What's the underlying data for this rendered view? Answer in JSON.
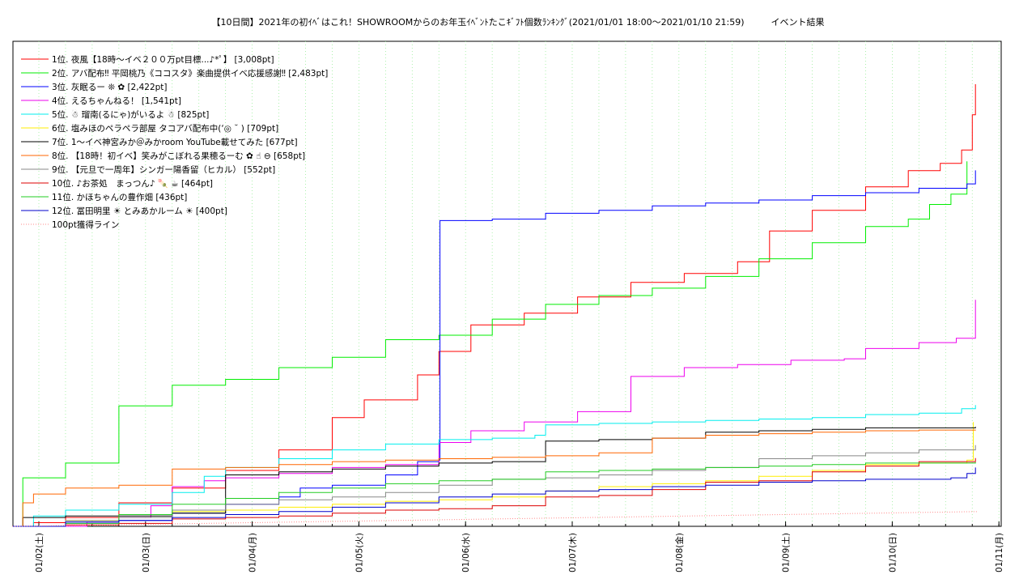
{
  "chart_data": {
    "type": "line",
    "title": "【10日間】2021年の初ｲﾍﾞはこれ！SHOWROOMからのお年玉ｲﾍﾞﾝﾄたこｷﾞﾌﾄ個数ﾗﾝｷﾝｸﾞ(2021/01/01 18:00〜2021/01/10 21:59)　　　イベント結果",
    "xlabel": "",
    "ylabel": "",
    "x_range": [
      "2021/01/01 18:00",
      "2021/01/11 00:00"
    ],
    "ylim": [
      0,
      3300
    ],
    "grid": true,
    "legend_position": "top-left",
    "x_ticks": [
      "01/02(土)",
      "01/03(日)",
      "01/04(月)",
      "01/05(火)",
      "01/06(水)",
      "01/07(木)",
      "01/08(金)",
      "01/09(土)",
      "01/10(日)",
      "01/11(月)"
    ],
    "series": [
      {
        "name": "1位. 夜風【18時〜イベ２００万pt目標...♪*ﾟ】 [3,008pt]",
        "color": "#ff0000",
        "points": [
          [
            0,
            0
          ],
          [
            0.2,
            25
          ],
          [
            0.5,
            60
          ],
          [
            1.0,
            160
          ],
          [
            1.5,
            260
          ],
          [
            2.0,
            380
          ],
          [
            2.5,
            520
          ],
          [
            3.0,
            740
          ],
          [
            3.3,
            860
          ],
          [
            3.8,
            1030
          ],
          [
            4.0,
            1190
          ],
          [
            4.3,
            1370
          ],
          [
            4.8,
            1450
          ],
          [
            5.3,
            1560
          ],
          [
            5.8,
            1660
          ],
          [
            6.3,
            1720
          ],
          [
            6.8,
            1800
          ],
          [
            7.1,
            2010
          ],
          [
            7.5,
            2150
          ],
          [
            8.0,
            2310
          ],
          [
            8.4,
            2420
          ],
          [
            8.7,
            2470
          ],
          [
            8.9,
            2560
          ],
          [
            9.0,
            2800
          ],
          [
            9.03,
            3008
          ]
        ]
      },
      {
        "name": "2位. アバ配布‼ 平岡桃乃《ココスタ》楽曲提供イベ応援感謝‼ [2,483pt]",
        "color": "#00ee00",
        "points": [
          [
            0,
            0
          ],
          [
            0.1,
            330
          ],
          [
            0.5,
            430
          ],
          [
            1.0,
            820
          ],
          [
            1.5,
            960
          ],
          [
            2.0,
            1000
          ],
          [
            2.5,
            1080
          ],
          [
            3.0,
            1150
          ],
          [
            3.5,
            1270
          ],
          [
            4.0,
            1300
          ],
          [
            4.5,
            1410
          ],
          [
            5.0,
            1510
          ],
          [
            5.5,
            1570
          ],
          [
            6.0,
            1620
          ],
          [
            6.5,
            1700
          ],
          [
            7.0,
            1820
          ],
          [
            7.5,
            1930
          ],
          [
            8.0,
            2040
          ],
          [
            8.4,
            2090
          ],
          [
            8.6,
            2190
          ],
          [
            8.8,
            2260
          ],
          [
            8.95,
            2483
          ]
        ]
      },
      {
        "name": "3位. 灰眠るー ❊ ✿ [2,422pt]",
        "color": "#0000ff",
        "points": [
          [
            0,
            0
          ],
          [
            0.5,
            20
          ],
          [
            1.0,
            40
          ],
          [
            1.5,
            90
          ],
          [
            2.0,
            150
          ],
          [
            2.5,
            200
          ],
          [
            2.7,
            260
          ],
          [
            3.0,
            280
          ],
          [
            3.5,
            350
          ],
          [
            3.8,
            440
          ],
          [
            4.0,
            450
          ],
          [
            4.01,
            2080
          ],
          [
            4.5,
            2090
          ],
          [
            5.0,
            2130
          ],
          [
            5.5,
            2150
          ],
          [
            6.0,
            2180
          ],
          [
            6.5,
            2200
          ],
          [
            7.0,
            2220
          ],
          [
            7.5,
            2250
          ],
          [
            8.0,
            2270
          ],
          [
            8.5,
            2300
          ],
          [
            8.95,
            2330
          ],
          [
            9.03,
            2422
          ]
        ]
      },
      {
        "name": "4位. えるちゃんねる！ [1,541pt]",
        "color": "#ee00ee",
        "points": [
          [
            0,
            0
          ],
          [
            0.5,
            0
          ],
          [
            0.7,
            30
          ],
          [
            1.0,
            60
          ],
          [
            1.3,
            140
          ],
          [
            1.5,
            270
          ],
          [
            1.8,
            310
          ],
          [
            2.0,
            330
          ],
          [
            2.5,
            360
          ],
          [
            3.0,
            400
          ],
          [
            3.5,
            420
          ],
          [
            4.0,
            570
          ],
          [
            4.3,
            650
          ],
          [
            4.8,
            710
          ],
          [
            5.3,
            780
          ],
          [
            5.8,
            1020
          ],
          [
            6.3,
            1080
          ],
          [
            6.8,
            1100
          ],
          [
            7.3,
            1130
          ],
          [
            7.8,
            1140
          ],
          [
            8.0,
            1210
          ],
          [
            8.5,
            1250
          ],
          [
            8.85,
            1280
          ],
          [
            9.03,
            1541
          ]
        ]
      },
      {
        "name": "5位. ☃ 瑠南(るにゃ)がいるよ ☃ [825pt]",
        "color": "#00eeee",
        "points": [
          [
            0,
            0
          ],
          [
            0.2,
            70
          ],
          [
            0.5,
            110
          ],
          [
            1.0,
            150
          ],
          [
            1.5,
            230
          ],
          [
            1.8,
            340
          ],
          [
            2.0,
            400
          ],
          [
            2.5,
            460
          ],
          [
            3.0,
            520
          ],
          [
            3.5,
            560
          ],
          [
            4.0,
            590
          ],
          [
            4.5,
            600
          ],
          [
            4.9,
            620
          ],
          [
            5.0,
            690
          ],
          [
            5.5,
            700
          ],
          [
            6.0,
            710
          ],
          [
            6.5,
            720
          ],
          [
            7.0,
            730
          ],
          [
            7.5,
            740
          ],
          [
            8.0,
            760
          ],
          [
            8.5,
            770
          ],
          [
            8.9,
            800
          ],
          [
            9.03,
            825
          ]
        ]
      },
      {
        "name": "6位. 塩みほのペラペラ部屋 タコアバ配布中(‘◎ ˘ ) [709pt]",
        "color": "#ffee00",
        "points": [
          [
            0,
            0
          ],
          [
            0.5,
            40
          ],
          [
            1.0,
            80
          ],
          [
            1.5,
            100
          ],
          [
            2.0,
            110
          ],
          [
            2.5,
            130
          ],
          [
            3.0,
            150
          ],
          [
            3.5,
            170
          ],
          [
            4.0,
            180
          ],
          [
            4.5,
            200
          ],
          [
            5.0,
            240
          ],
          [
            5.5,
            270
          ],
          [
            6.0,
            290
          ],
          [
            6.5,
            310
          ],
          [
            7.0,
            340
          ],
          [
            7.5,
            380
          ],
          [
            8.0,
            420
          ],
          [
            8.5,
            430
          ],
          [
            8.95,
            450
          ],
          [
            9.01,
            709
          ]
        ]
      },
      {
        "name": "7位. 1〜イベ神宮みか＠みかroom YouTube載せてみた [677pt]",
        "color": "#000000",
        "points": [
          [
            0,
            0
          ],
          [
            0.1,
            60
          ],
          [
            0.5,
            70
          ],
          [
            1.0,
            70
          ],
          [
            1.5,
            90
          ],
          [
            2.0,
            350
          ],
          [
            2.5,
            370
          ],
          [
            3.0,
            390
          ],
          [
            3.5,
            410
          ],
          [
            4.0,
            430
          ],
          [
            4.5,
            440
          ],
          [
            5.0,
            580
          ],
          [
            5.5,
            590
          ],
          [
            6.0,
            600
          ],
          [
            6.5,
            640
          ],
          [
            7.0,
            650
          ],
          [
            7.5,
            660
          ],
          [
            8.0,
            670
          ],
          [
            8.5,
            670
          ],
          [
            9.03,
            677
          ]
        ]
      },
      {
        "name": "8位. 【18時！初イベ】笑みがこぼれる果穂るーむ ✿ ☝ ⊖ [658pt]",
        "color": "#ff6600",
        "points": [
          [
            0,
            0
          ],
          [
            0.1,
            160
          ],
          [
            0.2,
            220
          ],
          [
            0.5,
            260
          ],
          [
            1.0,
            280
          ],
          [
            1.5,
            390
          ],
          [
            2.0,
            400
          ],
          [
            2.5,
            420
          ],
          [
            3.0,
            440
          ],
          [
            3.5,
            450
          ],
          [
            4.0,
            460
          ],
          [
            4.5,
            470
          ],
          [
            5.0,
            480
          ],
          [
            5.5,
            500
          ],
          [
            6.0,
            600
          ],
          [
            6.5,
            620
          ],
          [
            7.0,
            630
          ],
          [
            7.5,
            640
          ],
          [
            8.0,
            650
          ],
          [
            8.5,
            655
          ],
          [
            9.03,
            658
          ]
        ]
      },
      {
        "name": "9位. 【元旦で一周年】シンガー陽香留（ヒカル） [552pt]",
        "color": "#888888",
        "points": [
          [
            0,
            0
          ],
          [
            0.5,
            40
          ],
          [
            1.0,
            60
          ],
          [
            1.5,
            110
          ],
          [
            2.0,
            150
          ],
          [
            2.5,
            180
          ],
          [
            3.0,
            200
          ],
          [
            3.5,
            230
          ],
          [
            4.0,
            280
          ],
          [
            4.5,
            320
          ],
          [
            5.0,
            330
          ],
          [
            5.5,
            350
          ],
          [
            6.0,
            380
          ],
          [
            6.5,
            400
          ],
          [
            7.0,
            460
          ],
          [
            7.5,
            480
          ],
          [
            8.0,
            500
          ],
          [
            8.5,
            520
          ],
          [
            9.03,
            552
          ]
        ]
      },
      {
        "name": "10位. ♪お茶処　まっつん♪ 🍡 ☕ [464pt]",
        "color": "#dd0000",
        "points": [
          [
            0,
            0
          ],
          [
            0.5,
            10
          ],
          [
            1.0,
            20
          ],
          [
            1.5,
            50
          ],
          [
            2.0,
            60
          ],
          [
            2.5,
            70
          ],
          [
            3.0,
            90
          ],
          [
            3.5,
            110
          ],
          [
            4.0,
            120
          ],
          [
            4.5,
            140
          ],
          [
            5.0,
            200
          ],
          [
            5.5,
            210
          ],
          [
            6.0,
            250
          ],
          [
            6.5,
            300
          ],
          [
            7.0,
            310
          ],
          [
            7.5,
            370
          ],
          [
            8.0,
            410
          ],
          [
            8.5,
            440
          ],
          [
            9.03,
            464
          ]
        ]
      },
      {
        "name": "11位. かほちゃんの豊作畑 [436pt]",
        "color": "#22cc22",
        "points": [
          [
            0,
            0
          ],
          [
            0.5,
            20
          ],
          [
            1.0,
            80
          ],
          [
            1.5,
            150
          ],
          [
            2.0,
            190
          ],
          [
            2.5,
            230
          ],
          [
            3.0,
            260
          ],
          [
            3.5,
            290
          ],
          [
            4.0,
            310
          ],
          [
            4.5,
            320
          ],
          [
            5.0,
            370
          ],
          [
            5.5,
            380
          ],
          [
            6.0,
            390
          ],
          [
            6.5,
            400
          ],
          [
            7.0,
            410
          ],
          [
            7.5,
            420
          ],
          [
            8.0,
            430
          ],
          [
            9.03,
            436
          ]
        ]
      },
      {
        "name": "12位. 冨田明里 ☀ とみあかルーム ☀ [400pt]",
        "color": "#0000cc",
        "points": [
          [
            0,
            0
          ],
          [
            0.5,
            30
          ],
          [
            1.0,
            40
          ],
          [
            1.5,
            60
          ],
          [
            2.0,
            80
          ],
          [
            2.5,
            100
          ],
          [
            3.0,
            130
          ],
          [
            3.5,
            160
          ],
          [
            4.0,
            200
          ],
          [
            4.5,
            220
          ],
          [
            5.0,
            240
          ],
          [
            5.5,
            250
          ],
          [
            6.0,
            270
          ],
          [
            6.5,
            280
          ],
          [
            7.0,
            300
          ],
          [
            7.5,
            310
          ],
          [
            8.0,
            320
          ],
          [
            8.8,
            330
          ],
          [
            8.95,
            360
          ],
          [
            9.03,
            400
          ]
        ]
      },
      {
        "name": "100pt獲得ライン",
        "color": "#ff8888",
        "dashed": true,
        "points": [
          [
            0,
            0
          ],
          [
            9.05,
            100
          ]
        ]
      }
    ]
  }
}
